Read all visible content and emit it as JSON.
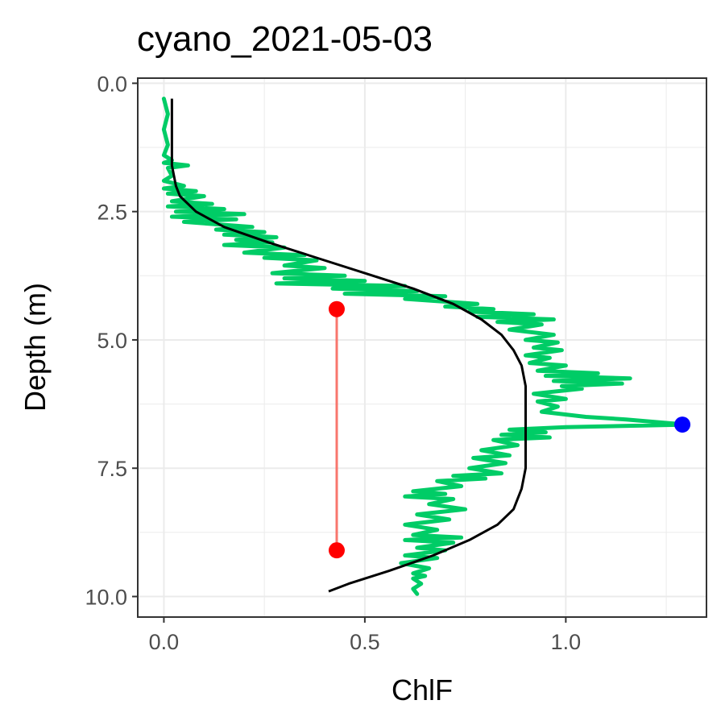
{
  "chart_data": {
    "type": "line",
    "title": "cyano_2021-05-03",
    "xlabel": "ChlF",
    "ylabel": "Depth (m)",
    "xlim": [
      -0.065,
      1.35
    ],
    "ylim": [
      10.4,
      -0.1
    ],
    "y_reversed": true,
    "grid": true,
    "legend": "none",
    "x_ticks": [
      0.0,
      0.5,
      1.0
    ],
    "x_tick_labels": [
      "0.0",
      "0.5",
      "1.0"
    ],
    "y_ticks": [
      0.0,
      2.5,
      5.0,
      7.5,
      10.0
    ],
    "y_tick_labels": [
      "0.0",
      "2.5",
      "5.0",
      "7.5",
      "10.0"
    ],
    "series": [
      {
        "kind": "observed",
        "color": "#00cc66",
        "points": [
          [
            0.0,
            0.3
          ],
          [
            0.01,
            0.6
          ],
          [
            0.0,
            0.9
          ],
          [
            0.01,
            1.2
          ],
          [
            0.0,
            1.4
          ],
          [
            0.02,
            1.5
          ],
          [
            0.0,
            1.55
          ],
          [
            0.06,
            1.6
          ],
          [
            0.01,
            1.65
          ],
          [
            0.02,
            1.8
          ],
          [
            0.0,
            1.9
          ],
          [
            0.05,
            2.0
          ],
          [
            0.0,
            2.05
          ],
          [
            0.08,
            2.1
          ],
          [
            0.01,
            2.15
          ],
          [
            0.1,
            2.2
          ],
          [
            0.02,
            2.3
          ],
          [
            0.12,
            2.35
          ],
          [
            0.01,
            2.4
          ],
          [
            0.15,
            2.45
          ],
          [
            0.03,
            2.5
          ],
          [
            0.2,
            2.55
          ],
          [
            0.02,
            2.6
          ],
          [
            0.18,
            2.65
          ],
          [
            0.05,
            2.7
          ],
          [
            0.22,
            2.8
          ],
          [
            0.13,
            2.85
          ],
          [
            0.25,
            2.9
          ],
          [
            0.15,
            2.95
          ],
          [
            0.28,
            3.0
          ],
          [
            0.18,
            3.05
          ],
          [
            0.27,
            3.1
          ],
          [
            0.15,
            3.15
          ],
          [
            0.3,
            3.2
          ],
          [
            0.2,
            3.3
          ],
          [
            0.35,
            3.35
          ],
          [
            0.25,
            3.4
          ],
          [
            0.38,
            3.45
          ],
          [
            0.3,
            3.55
          ],
          [
            0.4,
            3.6
          ],
          [
            0.27,
            3.7
          ],
          [
            0.45,
            3.75
          ],
          [
            0.3,
            3.8
          ],
          [
            0.5,
            3.85
          ],
          [
            0.28,
            3.9
          ],
          [
            0.6,
            3.95
          ],
          [
            0.42,
            4.0
          ],
          [
            0.63,
            4.05
          ],
          [
            0.45,
            4.1
          ],
          [
            0.7,
            4.15
          ],
          [
            0.6,
            4.2
          ],
          [
            0.78,
            4.3
          ],
          [
            0.7,
            4.35
          ],
          [
            0.82,
            4.4
          ],
          [
            0.76,
            4.45
          ],
          [
            0.92,
            4.5
          ],
          [
            0.78,
            4.55
          ],
          [
            0.97,
            4.6
          ],
          [
            0.83,
            4.65
          ],
          [
            0.94,
            4.7
          ],
          [
            0.86,
            4.8
          ],
          [
            0.97,
            4.9
          ],
          [
            0.9,
            5.0
          ],
          [
            0.98,
            5.05
          ],
          [
            0.92,
            5.15
          ],
          [
            0.99,
            5.2
          ],
          [
            0.9,
            5.3
          ],
          [
            0.96,
            5.35
          ],
          [
            0.91,
            5.45
          ],
          [
            1.0,
            5.5
          ],
          [
            0.93,
            5.6
          ],
          [
            1.08,
            5.65
          ],
          [
            0.95,
            5.7
          ],
          [
            1.16,
            5.75
          ],
          [
            0.97,
            5.8
          ],
          [
            1.14,
            5.85
          ],
          [
            0.99,
            5.9
          ],
          [
            1.04,
            5.95
          ],
          [
            0.92,
            6.05
          ],
          [
            1.0,
            6.15
          ],
          [
            0.93,
            6.2
          ],
          [
            0.98,
            6.3
          ],
          [
            0.94,
            6.4
          ],
          [
            1.05,
            6.5
          ],
          [
            1.15,
            6.55
          ],
          [
            1.3,
            6.65
          ],
          [
            1.0,
            6.7
          ],
          [
            0.86,
            6.75
          ],
          [
            0.95,
            6.8
          ],
          [
            0.84,
            6.85
          ],
          [
            0.96,
            6.9
          ],
          [
            0.82,
            6.95
          ],
          [
            0.88,
            7.05
          ],
          [
            0.79,
            7.15
          ],
          [
            0.86,
            7.25
          ],
          [
            0.77,
            7.3
          ],
          [
            0.85,
            7.4
          ],
          [
            0.76,
            7.5
          ],
          [
            0.84,
            7.6
          ],
          [
            0.72,
            7.65
          ],
          [
            0.8,
            7.7
          ],
          [
            0.68,
            7.75
          ],
          [
            0.74,
            7.85
          ],
          [
            0.62,
            7.95
          ],
          [
            0.7,
            8.0
          ],
          [
            0.6,
            8.05
          ],
          [
            0.72,
            8.1
          ],
          [
            0.66,
            8.2
          ],
          [
            0.75,
            8.3
          ],
          [
            0.63,
            8.4
          ],
          [
            0.71,
            8.5
          ],
          [
            0.6,
            8.6
          ],
          [
            0.68,
            8.7
          ],
          [
            0.62,
            8.8
          ],
          [
            0.74,
            8.85
          ],
          [
            0.6,
            8.9
          ],
          [
            0.72,
            8.95
          ],
          [
            0.63,
            9.05
          ],
          [
            0.7,
            9.1
          ],
          [
            0.6,
            9.2
          ],
          [
            0.68,
            9.25
          ],
          [
            0.59,
            9.35
          ],
          [
            0.66,
            9.45
          ],
          [
            0.62,
            9.55
          ],
          [
            0.65,
            9.6
          ],
          [
            0.62,
            9.65
          ],
          [
            0.64,
            9.75
          ],
          [
            0.62,
            9.85
          ],
          [
            0.63,
            9.95
          ]
        ]
      },
      {
        "kind": "fitted",
        "color": "#000000",
        "points": [
          [
            0.02,
            0.3
          ],
          [
            0.02,
            1.0
          ],
          [
            0.02,
            1.6
          ],
          [
            0.03,
            2.0
          ],
          [
            0.04,
            2.2
          ],
          [
            0.08,
            2.5
          ],
          [
            0.15,
            2.8
          ],
          [
            0.26,
            3.1
          ],
          [
            0.38,
            3.4
          ],
          [
            0.5,
            3.7
          ],
          [
            0.62,
            4.0
          ],
          [
            0.72,
            4.3
          ],
          [
            0.79,
            4.6
          ],
          [
            0.84,
            4.9
          ],
          [
            0.87,
            5.2
          ],
          [
            0.89,
            5.5
          ],
          [
            0.9,
            5.9
          ],
          [
            0.9,
            6.5
          ],
          [
            0.9,
            7.0
          ],
          [
            0.9,
            7.5
          ],
          [
            0.89,
            7.9
          ],
          [
            0.87,
            8.3
          ],
          [
            0.83,
            8.6
          ],
          [
            0.76,
            8.9
          ],
          [
            0.67,
            9.2
          ],
          [
            0.56,
            9.5
          ],
          [
            0.46,
            9.75
          ],
          [
            0.41,
            9.9
          ]
        ]
      },
      {
        "kind": "range-segment",
        "color": "#f8766d",
        "points": [
          [
            0.43,
            4.4
          ],
          [
            0.43,
            9.1
          ]
        ]
      },
      {
        "kind": "range-endpoints",
        "color": "#ff0000",
        "points": [
          [
            0.43,
            4.4
          ],
          [
            0.43,
            9.1
          ]
        ]
      },
      {
        "kind": "peak-point",
        "color": "#0000ff",
        "points": [
          [
            1.29,
            6.65
          ]
        ]
      }
    ]
  }
}
